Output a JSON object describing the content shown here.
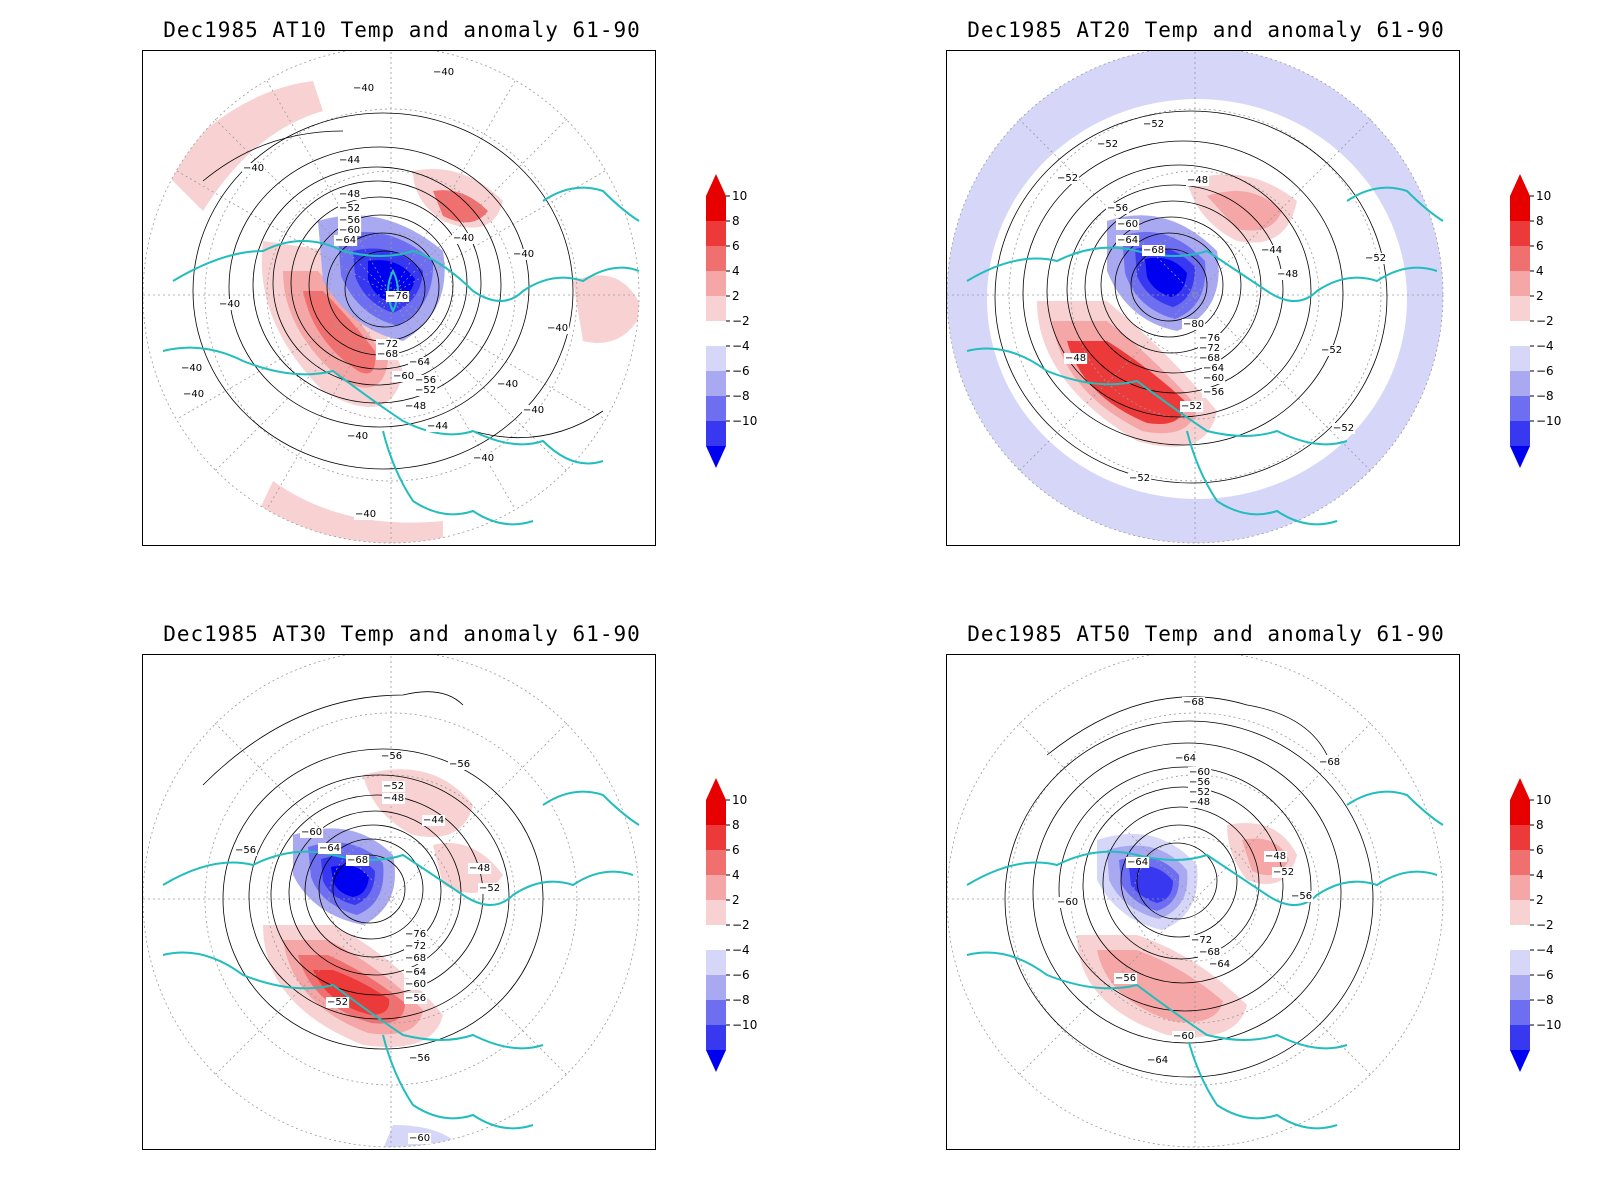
{
  "colors": {
    "coast": "#22bdbd",
    "contour": "#000000",
    "grid": "#9a9a9a",
    "cb_steps": [
      "#0000f0",
      "#3838f0",
      "#6e6ef0",
      "#a9a9f2",
      "#d6d6f8",
      "#ffffff",
      "#f8d2d2",
      "#f5a6a6",
      "#f07070",
      "#ec3a3a",
      "#e60000"
    ]
  },
  "colorbar": {
    "labels": [
      "10",
      "8",
      "6",
      "4",
      "2",
      "−2",
      "−4",
      "−6",
      "−8",
      "−10"
    ]
  },
  "panels": [
    {
      "title": "Dec1985 AT10 Temp and anomaly 61-90",
      "labels": [
        "−40",
        "−40",
        "−40",
        "−40",
        "−40",
        "−44",
        "−48",
        "−52",
        "−56",
        "−60",
        "−64",
        "−76",
        "−72",
        "−68",
        "−64",
        "−60",
        "−56",
        "−52",
        "−48",
        "−44",
        "−40",
        "−40",
        "−40",
        "−40",
        "−40",
        "−40",
        "−40",
        "−40",
        "−40"
      ]
    },
    {
      "title": "Dec1985 AT20 Temp and anomaly 61-90",
      "labels": [
        "−52",
        "−52",
        "−52",
        "−48",
        "−56",
        "−60",
        "−64",
        "−68",
        "−44",
        "−48",
        "−52",
        "−80",
        "−76",
        "−72",
        "−68",
        "−64",
        "−60",
        "−56",
        "−52",
        "−48",
        "−52",
        "−52",
        "−52"
      ]
    },
    {
      "title": "Dec1985 AT30 Temp and anomaly 61-90",
      "labels": [
        "−56",
        "−56",
        "−52",
        "−48",
        "−44",
        "−60",
        "−64",
        "−68",
        "−56",
        "−48",
        "−52",
        "−76",
        "−72",
        "−68",
        "−64",
        "−60",
        "−56",
        "−52",
        "−56",
        "−60"
      ]
    },
    {
      "title": "Dec1985 AT50 Temp and anomaly 61-90",
      "labels": [
        "−68",
        "−68",
        "−64",
        "−60",
        "−56",
        "−52",
        "−48",
        "−48",
        "−52",
        "−56",
        "−64",
        "−60",
        "−72",
        "−68",
        "−64",
        "−56",
        "−60",
        "−64"
      ]
    }
  ]
}
